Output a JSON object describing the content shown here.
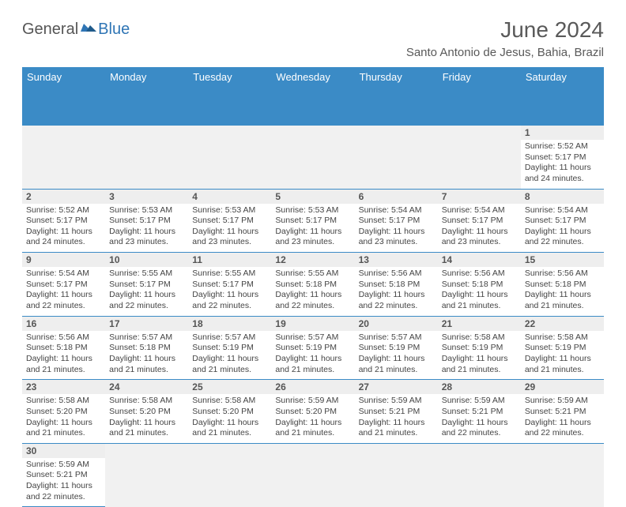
{
  "logo": {
    "text1": "General",
    "text2": "Blue"
  },
  "title": "June 2024",
  "subtitle": "Santo Antonio de Jesus, Bahia, Brazil",
  "headers": [
    "Sunday",
    "Monday",
    "Tuesday",
    "Wednesday",
    "Thursday",
    "Friday",
    "Saturday"
  ],
  "colors": {
    "header_bg": "#3b8bc6",
    "header_text": "#ffffff",
    "daynum_bg": "#eeeeee",
    "border": "#3b8bc6",
    "title_color": "#595959"
  },
  "weeks": [
    {
      "nums": [
        "",
        "",
        "",
        "",
        "",
        "",
        "1"
      ],
      "cells": [
        null,
        null,
        null,
        null,
        null,
        null,
        {
          "sr": "Sunrise: 5:52 AM",
          "ss": "Sunset: 5:17 PM",
          "dl1": "Daylight: 11 hours",
          "dl2": "and 24 minutes."
        }
      ]
    },
    {
      "nums": [
        "2",
        "3",
        "4",
        "5",
        "6",
        "7",
        "8"
      ],
      "cells": [
        {
          "sr": "Sunrise: 5:52 AM",
          "ss": "Sunset: 5:17 PM",
          "dl1": "Daylight: 11 hours",
          "dl2": "and 24 minutes."
        },
        {
          "sr": "Sunrise: 5:53 AM",
          "ss": "Sunset: 5:17 PM",
          "dl1": "Daylight: 11 hours",
          "dl2": "and 23 minutes."
        },
        {
          "sr": "Sunrise: 5:53 AM",
          "ss": "Sunset: 5:17 PM",
          "dl1": "Daylight: 11 hours",
          "dl2": "and 23 minutes."
        },
        {
          "sr": "Sunrise: 5:53 AM",
          "ss": "Sunset: 5:17 PM",
          "dl1": "Daylight: 11 hours",
          "dl2": "and 23 minutes."
        },
        {
          "sr": "Sunrise: 5:54 AM",
          "ss": "Sunset: 5:17 PM",
          "dl1": "Daylight: 11 hours",
          "dl2": "and 23 minutes."
        },
        {
          "sr": "Sunrise: 5:54 AM",
          "ss": "Sunset: 5:17 PM",
          "dl1": "Daylight: 11 hours",
          "dl2": "and 23 minutes."
        },
        {
          "sr": "Sunrise: 5:54 AM",
          "ss": "Sunset: 5:17 PM",
          "dl1": "Daylight: 11 hours",
          "dl2": "and 22 minutes."
        }
      ]
    },
    {
      "nums": [
        "9",
        "10",
        "11",
        "12",
        "13",
        "14",
        "15"
      ],
      "cells": [
        {
          "sr": "Sunrise: 5:54 AM",
          "ss": "Sunset: 5:17 PM",
          "dl1": "Daylight: 11 hours",
          "dl2": "and 22 minutes."
        },
        {
          "sr": "Sunrise: 5:55 AM",
          "ss": "Sunset: 5:17 PM",
          "dl1": "Daylight: 11 hours",
          "dl2": "and 22 minutes."
        },
        {
          "sr": "Sunrise: 5:55 AM",
          "ss": "Sunset: 5:17 PM",
          "dl1": "Daylight: 11 hours",
          "dl2": "and 22 minutes."
        },
        {
          "sr": "Sunrise: 5:55 AM",
          "ss": "Sunset: 5:18 PM",
          "dl1": "Daylight: 11 hours",
          "dl2": "and 22 minutes."
        },
        {
          "sr": "Sunrise: 5:56 AM",
          "ss": "Sunset: 5:18 PM",
          "dl1": "Daylight: 11 hours",
          "dl2": "and 22 minutes."
        },
        {
          "sr": "Sunrise: 5:56 AM",
          "ss": "Sunset: 5:18 PM",
          "dl1": "Daylight: 11 hours",
          "dl2": "and 21 minutes."
        },
        {
          "sr": "Sunrise: 5:56 AM",
          "ss": "Sunset: 5:18 PM",
          "dl1": "Daylight: 11 hours",
          "dl2": "and 21 minutes."
        }
      ]
    },
    {
      "nums": [
        "16",
        "17",
        "18",
        "19",
        "20",
        "21",
        "22"
      ],
      "cells": [
        {
          "sr": "Sunrise: 5:56 AM",
          "ss": "Sunset: 5:18 PM",
          "dl1": "Daylight: 11 hours",
          "dl2": "and 21 minutes."
        },
        {
          "sr": "Sunrise: 5:57 AM",
          "ss": "Sunset: 5:18 PM",
          "dl1": "Daylight: 11 hours",
          "dl2": "and 21 minutes."
        },
        {
          "sr": "Sunrise: 5:57 AM",
          "ss": "Sunset: 5:19 PM",
          "dl1": "Daylight: 11 hours",
          "dl2": "and 21 minutes."
        },
        {
          "sr": "Sunrise: 5:57 AM",
          "ss": "Sunset: 5:19 PM",
          "dl1": "Daylight: 11 hours",
          "dl2": "and 21 minutes."
        },
        {
          "sr": "Sunrise: 5:57 AM",
          "ss": "Sunset: 5:19 PM",
          "dl1": "Daylight: 11 hours",
          "dl2": "and 21 minutes."
        },
        {
          "sr": "Sunrise: 5:58 AM",
          "ss": "Sunset: 5:19 PM",
          "dl1": "Daylight: 11 hours",
          "dl2": "and 21 minutes."
        },
        {
          "sr": "Sunrise: 5:58 AM",
          "ss": "Sunset: 5:19 PM",
          "dl1": "Daylight: 11 hours",
          "dl2": "and 21 minutes."
        }
      ]
    },
    {
      "nums": [
        "23",
        "24",
        "25",
        "26",
        "27",
        "28",
        "29"
      ],
      "cells": [
        {
          "sr": "Sunrise: 5:58 AM",
          "ss": "Sunset: 5:20 PM",
          "dl1": "Daylight: 11 hours",
          "dl2": "and 21 minutes."
        },
        {
          "sr": "Sunrise: 5:58 AM",
          "ss": "Sunset: 5:20 PM",
          "dl1": "Daylight: 11 hours",
          "dl2": "and 21 minutes."
        },
        {
          "sr": "Sunrise: 5:58 AM",
          "ss": "Sunset: 5:20 PM",
          "dl1": "Daylight: 11 hours",
          "dl2": "and 21 minutes."
        },
        {
          "sr": "Sunrise: 5:59 AM",
          "ss": "Sunset: 5:20 PM",
          "dl1": "Daylight: 11 hours",
          "dl2": "and 21 minutes."
        },
        {
          "sr": "Sunrise: 5:59 AM",
          "ss": "Sunset: 5:21 PM",
          "dl1": "Daylight: 11 hours",
          "dl2": "and 21 minutes."
        },
        {
          "sr": "Sunrise: 5:59 AM",
          "ss": "Sunset: 5:21 PM",
          "dl1": "Daylight: 11 hours",
          "dl2": "and 22 minutes."
        },
        {
          "sr": "Sunrise: 5:59 AM",
          "ss": "Sunset: 5:21 PM",
          "dl1": "Daylight: 11 hours",
          "dl2": "and 22 minutes."
        }
      ]
    },
    {
      "nums": [
        "30",
        "",
        "",
        "",
        "",
        "",
        ""
      ],
      "cells": [
        {
          "sr": "Sunrise: 5:59 AM",
          "ss": "Sunset: 5:21 PM",
          "dl1": "Daylight: 11 hours",
          "dl2": "and 22 minutes."
        },
        null,
        null,
        null,
        null,
        null,
        null
      ]
    }
  ]
}
